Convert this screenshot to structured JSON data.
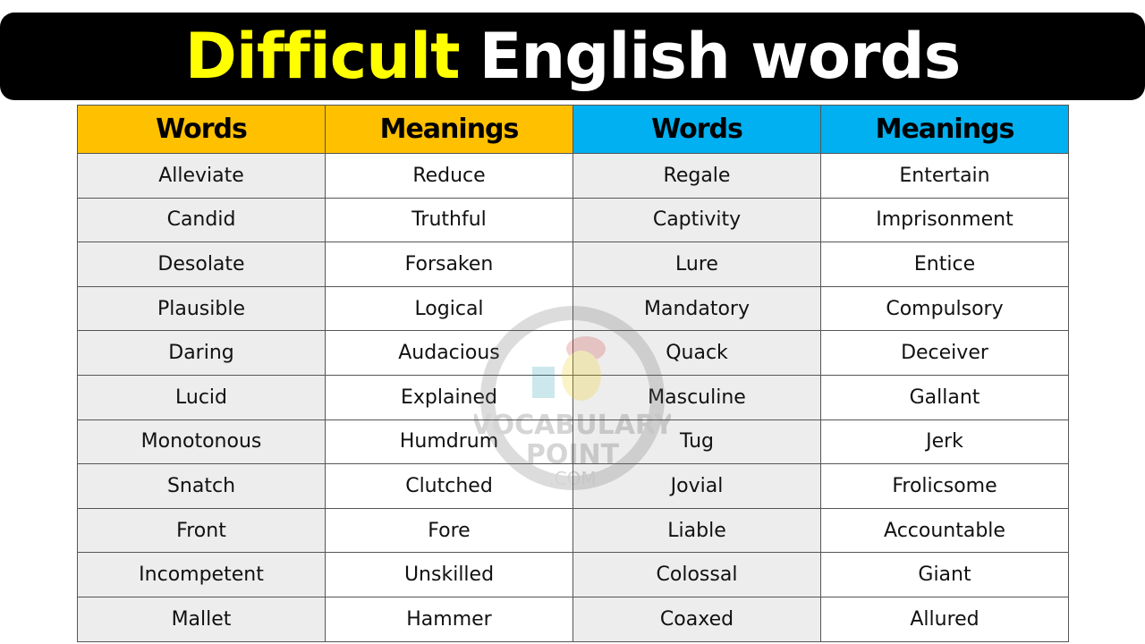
{
  "title": {
    "highlight": "Difficult",
    "rest": "English words"
  },
  "colors": {
    "title_highlight": "#ffff00",
    "header_left": "#ffc000",
    "header_right": "#00b0f0",
    "word_cell": "#ededed"
  },
  "headers": [
    "Words",
    "Meanings",
    "Words",
    "Meanings"
  ],
  "rows": [
    [
      "Alleviate",
      "Reduce",
      "Regale",
      "Entertain"
    ],
    [
      "Candid",
      "Truthful",
      "Captivity",
      "Imprisonment"
    ],
    [
      "Desolate",
      "Forsaken",
      "Lure",
      "Entice"
    ],
    [
      "Plausible",
      "Logical",
      "Mandatory",
      "Compulsory"
    ],
    [
      "Daring",
      "Audacious",
      "Quack",
      "Deceiver"
    ],
    [
      "Lucid",
      "Explained",
      "Masculine",
      "Gallant"
    ],
    [
      "Monotonous",
      "Humdrum",
      "Tug",
      "Jerk"
    ],
    [
      "Snatch",
      "Clutched",
      "Jovial",
      "Frolicsome"
    ],
    [
      "Front",
      "Fore",
      "Liable",
      "Accountable"
    ],
    [
      "Incompetent",
      "Unskilled",
      "Colossal",
      "Giant"
    ],
    [
      "Mallet",
      "Hammer",
      "Coaxed",
      "Allured"
    ]
  ],
  "watermark": {
    "line1": "VOCABULARY",
    "line2": "POINT",
    "line3": ".COM"
  }
}
